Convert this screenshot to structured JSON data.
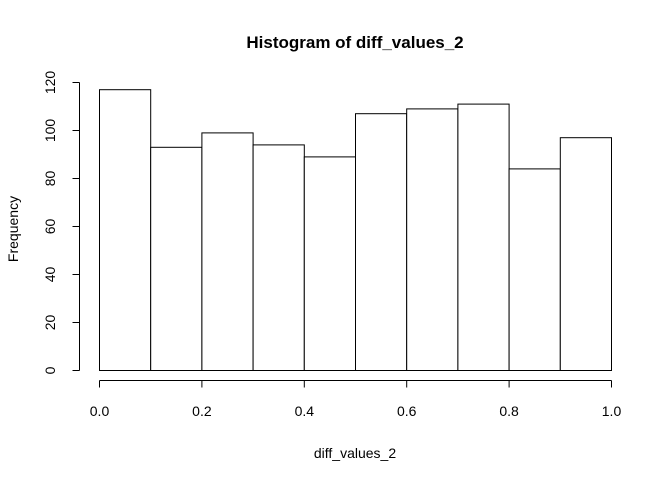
{
  "chart_data": {
    "type": "bar",
    "title": "Histogram of diff_values_2",
    "xlabel": "diff_values_2",
    "ylabel": "Frequency",
    "bins": [
      {
        "x0": 0.0,
        "x1": 0.1,
        "count": 117
      },
      {
        "x0": 0.1,
        "x1": 0.2,
        "count": 93
      },
      {
        "x0": 0.2,
        "x1": 0.3,
        "count": 99
      },
      {
        "x0": 0.3,
        "x1": 0.4,
        "count": 94
      },
      {
        "x0": 0.4,
        "x1": 0.5,
        "count": 89
      },
      {
        "x0": 0.5,
        "x1": 0.6,
        "count": 107
      },
      {
        "x0": 0.6,
        "x1": 0.7,
        "count": 109
      },
      {
        "x0": 0.7,
        "x1": 0.8,
        "count": 111
      },
      {
        "x0": 0.8,
        "x1": 0.9,
        "count": 84
      },
      {
        "x0": 0.9,
        "x1": 1.0,
        "count": 97
      }
    ],
    "xlim": [
      0.0,
      1.0
    ],
    "ylim": [
      0,
      120
    ],
    "xticks": [
      "0.0",
      "0.2",
      "0.4",
      "0.6",
      "0.8",
      "1.0"
    ],
    "yticks": [
      "0",
      "20",
      "40",
      "60",
      "80",
      "100",
      "120"
    ],
    "grid": false,
    "colors": {
      "fill": "#ffffff",
      "stroke": "#000000"
    }
  }
}
